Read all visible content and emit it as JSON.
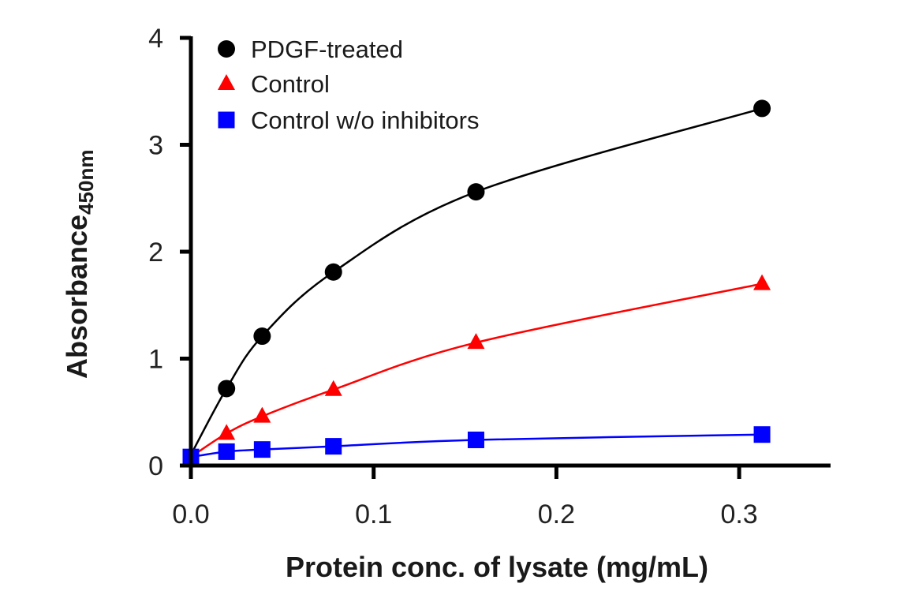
{
  "chart_data": {
    "type": "scatter",
    "title": "",
    "xlabel": "Protein conc. of lysate (mg/mL)",
    "ylabel": "Absorbance",
    "ylabel_subscript": "450nm",
    "xlim": [
      0,
      0.35
    ],
    "ylim": [
      0,
      4
    ],
    "x_ticks": [
      0.0,
      0.1,
      0.2,
      0.3
    ],
    "x_tick_labels": [
      "0.0",
      "0.1",
      "0.2",
      "0.3"
    ],
    "y_ticks": [
      0,
      1,
      2,
      3,
      4
    ],
    "y_tick_labels": [
      "0",
      "1",
      "2",
      "3",
      "4"
    ],
    "grid": false,
    "legend_position": "top-left",
    "series": [
      {
        "name": "PDGF-treated",
        "marker": "circle",
        "color": "#000000",
        "x": [
          0.0195,
          0.039,
          0.078,
          0.156,
          0.3125
        ],
        "y": [
          0.72,
          1.21,
          1.81,
          2.56,
          3.34
        ],
        "fit_start": 0.1
      },
      {
        "name": "Control",
        "marker": "triangle",
        "color": "#ff0000",
        "x": [
          0.0195,
          0.039,
          0.078,
          0.156,
          0.3125
        ],
        "y": [
          0.3,
          0.46,
          0.71,
          1.15,
          1.7
        ],
        "fit_start": 0.08
      },
      {
        "name": "Control w/o inhibitors",
        "marker": "square",
        "color": "#0000ff",
        "x": [
          0.0,
          0.0195,
          0.039,
          0.078,
          0.156,
          0.3125
        ],
        "y": [
          0.08,
          0.13,
          0.15,
          0.18,
          0.24,
          0.29
        ],
        "fit_start": 0.08
      }
    ]
  }
}
